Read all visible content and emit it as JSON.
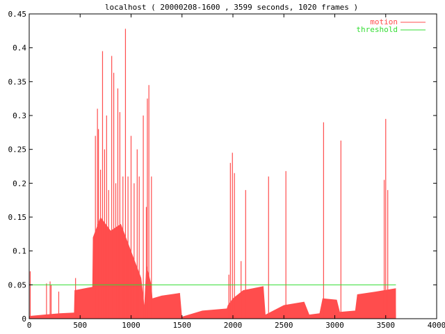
{
  "colors": {
    "background": "#ffffff",
    "frame": "#000000",
    "motion": "#ff4d4d",
    "threshold": "#33dd33"
  },
  "chart_data": {
    "type": "area",
    "title": "localhost ( 20000208-1600 , 3599 seconds, 1020 frames )",
    "xlabel": "",
    "ylabel": "",
    "xlim": [
      0,
      4000
    ],
    "ylim": [
      0,
      0.45
    ],
    "x_ticks": [
      0,
      500,
      1000,
      1500,
      2000,
      2500,
      3000,
      3500,
      4000
    ],
    "y_ticks": [
      0,
      0.05,
      0.1,
      0.15,
      0.2,
      0.25,
      0.3,
      0.35,
      0.4,
      0.45
    ],
    "x_tick_labels": [
      "0",
      "500",
      "1000",
      "1500",
      "2000",
      "2500",
      "3000",
      "3500",
      "4000"
    ],
    "y_tick_labels": [
      "0",
      "0.05",
      "0.1",
      "0.15",
      "0.2",
      "0.25",
      "0.3",
      "0.35",
      "0.4",
      "0.45"
    ],
    "grid": false,
    "legend_position": "top-right",
    "series": [
      {
        "name": "motion",
        "style": "impulses",
        "baseline": [
          [
            0,
            0.004
          ],
          [
            150,
            0.006
          ],
          [
            300,
            0.008
          ],
          [
            440,
            0.009
          ],
          [
            445,
            0.042
          ],
          [
            620,
            0.047
          ],
          [
            625,
            0.12
          ],
          [
            700,
            0.15
          ],
          [
            750,
            0.14
          ],
          [
            800,
            0.13
          ],
          [
            900,
            0.14
          ],
          [
            1000,
            0.1
          ],
          [
            1100,
            0.06
          ],
          [
            1130,
            0.02
          ],
          [
            1150,
            0.08
          ],
          [
            1200,
            0.05
          ],
          [
            1210,
            0.03
          ],
          [
            1300,
            0.034
          ],
          [
            1480,
            0.038
          ],
          [
            1500,
            0.003
          ],
          [
            1700,
            0.012
          ],
          [
            1940,
            0.015
          ],
          [
            1950,
            0.02
          ],
          [
            2000,
            0.03
          ],
          [
            2100,
            0.042
          ],
          [
            2300,
            0.048
          ],
          [
            2320,
            0.006
          ],
          [
            2500,
            0.02
          ],
          [
            2700,
            0.025
          ],
          [
            2750,
            0.006
          ],
          [
            2850,
            0.008
          ],
          [
            2880,
            0.03
          ],
          [
            3020,
            0.028
          ],
          [
            3050,
            0.01
          ],
          [
            3200,
            0.012
          ],
          [
            3220,
            0.036
          ],
          [
            3400,
            0.04
          ],
          [
            3600,
            0.045
          ],
          [
            3600,
            0.02
          ],
          [
            3601,
            0
          ]
        ],
        "spikes": [
          [
            10,
            0.07
          ],
          [
            170,
            0.052
          ],
          [
            205,
            0.055
          ],
          [
            215,
            0.05
          ],
          [
            290,
            0.04
          ],
          [
            455,
            0.06
          ],
          [
            650,
            0.27
          ],
          [
            670,
            0.31
          ],
          [
            680,
            0.28
          ],
          [
            700,
            0.22
          ],
          [
            720,
            0.395
          ],
          [
            740,
            0.25
          ],
          [
            760,
            0.3
          ],
          [
            780,
            0.19
          ],
          [
            810,
            0.388
          ],
          [
            830,
            0.363
          ],
          [
            850,
            0.2
          ],
          [
            870,
            0.34
          ],
          [
            890,
            0.305
          ],
          [
            920,
            0.21
          ],
          [
            945,
            0.428
          ],
          [
            970,
            0.21
          ],
          [
            1000,
            0.27
          ],
          [
            1030,
            0.2
          ],
          [
            1060,
            0.25
          ],
          [
            1080,
            0.21
          ],
          [
            1120,
            0.3
          ],
          [
            1150,
            0.165
          ],
          [
            1160,
            0.325
          ],
          [
            1175,
            0.345
          ],
          [
            1200,
            0.21
          ],
          [
            1960,
            0.065
          ],
          [
            1975,
            0.23
          ],
          [
            1995,
            0.245
          ],
          [
            2015,
            0.215
          ],
          [
            2080,
            0.085
          ],
          [
            2125,
            0.19
          ],
          [
            2350,
            0.21
          ],
          [
            2520,
            0.218
          ],
          [
            2890,
            0.29
          ],
          [
            3060,
            0.263
          ],
          [
            3485,
            0.205
          ],
          [
            3500,
            0.295
          ],
          [
            3520,
            0.19
          ]
        ]
      },
      {
        "name": "threshold",
        "style": "line",
        "values": [
          [
            0,
            0.05
          ],
          [
            3600,
            0.05
          ]
        ]
      }
    ]
  }
}
